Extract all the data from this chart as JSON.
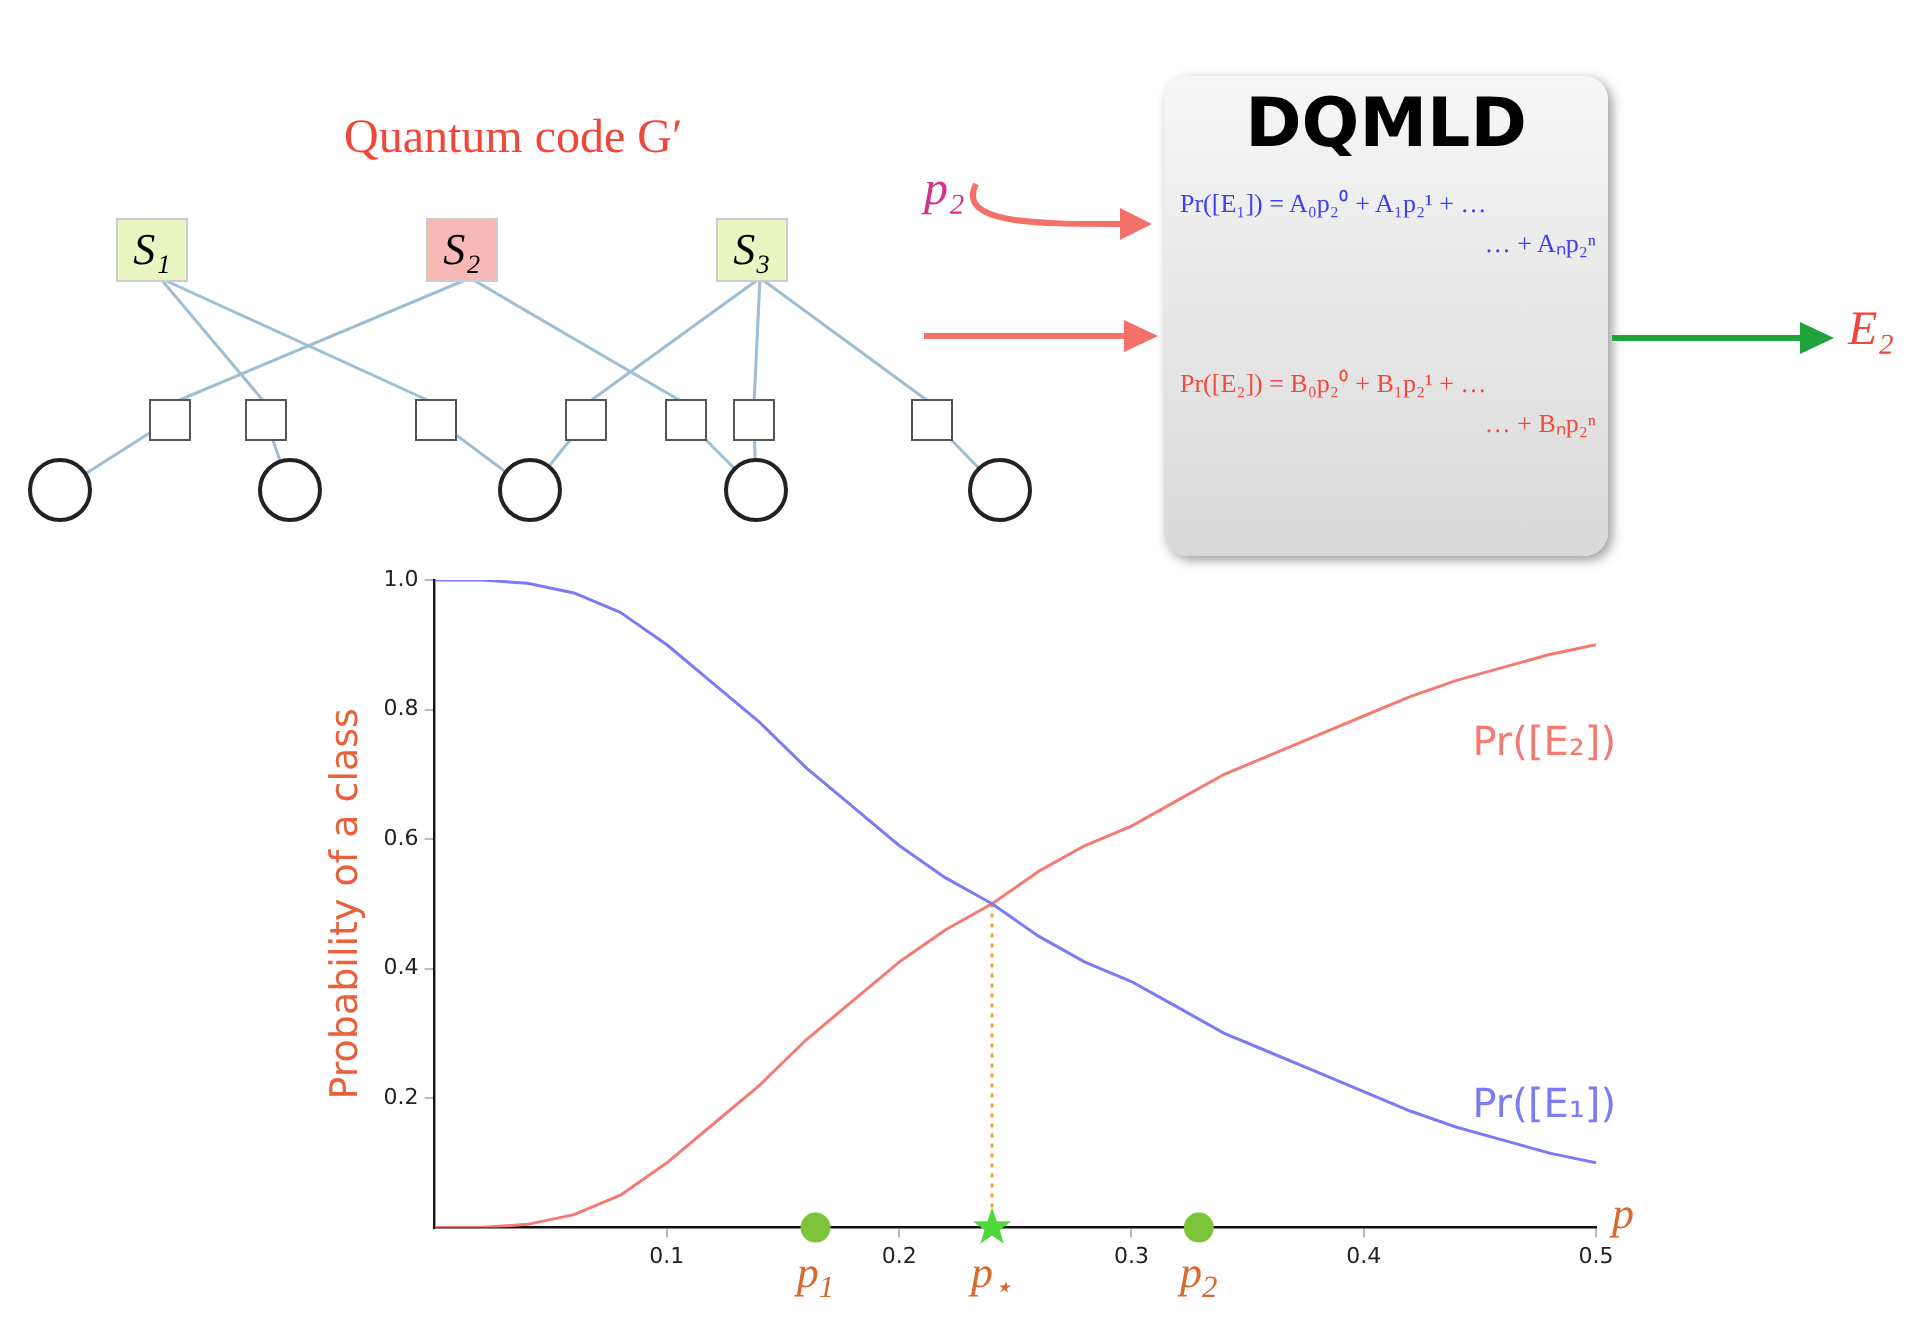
{
  "chart_data": {
    "type": "line",
    "ylabel": "Probability of a class",
    "xlabel": "p",
    "marker": "none",
    "legend": false,
    "grid": false,
    "xlim": [
      0,
      0.5
    ],
    "xticks": [
      0.1,
      0.2,
      0.3,
      0.4,
      0.5
    ],
    "ylim": [
      0,
      1
    ],
    "yticks": [
      0.2,
      0.4,
      0.6,
      0.8,
      {
        "value": 1,
        "label": "1.0"
      }
    ],
    "x": [
      0,
      0.02,
      0.04,
      0.06,
      0.08,
      0.1,
      0.12,
      0.14,
      0.16,
      0.18,
      0.2,
      0.22,
      0.24,
      0.26,
      0.28,
      0.3,
      0.32,
      0.34,
      0.36,
      0.38,
      0.4,
      0.42,
      0.44,
      0.46,
      0.48,
      0.5
    ],
    "series": [
      {
        "name": "Pr([E₁])",
        "color": "#7b7bf5",
        "values": [
          1,
          1,
          0.995,
          0.98,
          0.95,
          0.9,
          0.84,
          0.78,
          0.71,
          0.65,
          0.59,
          0.54,
          0.5,
          0.45,
          0.41,
          0.38,
          0.34,
          0.3,
          0.27,
          0.24,
          0.21,
          0.18,
          0.155,
          0.135,
          0.115,
          0.1
        ]
      },
      {
        "name": "Pr([E₂])",
        "color": "#f47b72",
        "values": [
          0,
          0,
          0.005,
          0.02,
          0.05,
          0.1,
          0.16,
          0.22,
          0.29,
          0.35,
          0.41,
          0.46,
          0.5,
          0.55,
          0.59,
          0.62,
          0.66,
          0.7,
          0.73,
          0.76,
          0.79,
          0.82,
          0.845,
          0.865,
          0.885,
          0.9
        ]
      },
      {
        "type": "line",
        "color": "#f5a623",
        "line_style": "dotted",
        "x": [
          0.24,
          0.24
        ],
        "values": [
          0,
          0.5
        ]
      },
      {
        "type": "scatter",
        "marker": "circle",
        "color": "#7ec43a",
        "x": [
          0.164,
          0.329
        ],
        "values": [
          0,
          0
        ]
      },
      {
        "type": "scatter",
        "marker": "star",
        "color": "#4fd83a",
        "x": [
          0.24
        ],
        "values": [
          0
        ]
      }
    ],
    "annotations": [
      "Quantum code G′",
      "S₁",
      "S₂",
      "S₃",
      "p₂",
      "DQMLD",
      "Pr([E₁]) = A₀p₂⁰ + A₁p₂¹ + …",
      "… + Aₙp₂ⁿ",
      "Pr([E₂]) = B₀p₂⁰ + B₁p₂¹ + …",
      "… + Bₙp₂ⁿ",
      "E₂",
      {
        "text": "p$_{1}$",
        "x": 0.164,
        "y": 0
      },
      {
        "text": "p$_{⋆}$",
        "x": 0.24,
        "y": 0
      },
      {
        "text": "p$_{2}$",
        "x": 0.329,
        "y": 0
      }
    ]
  }
}
